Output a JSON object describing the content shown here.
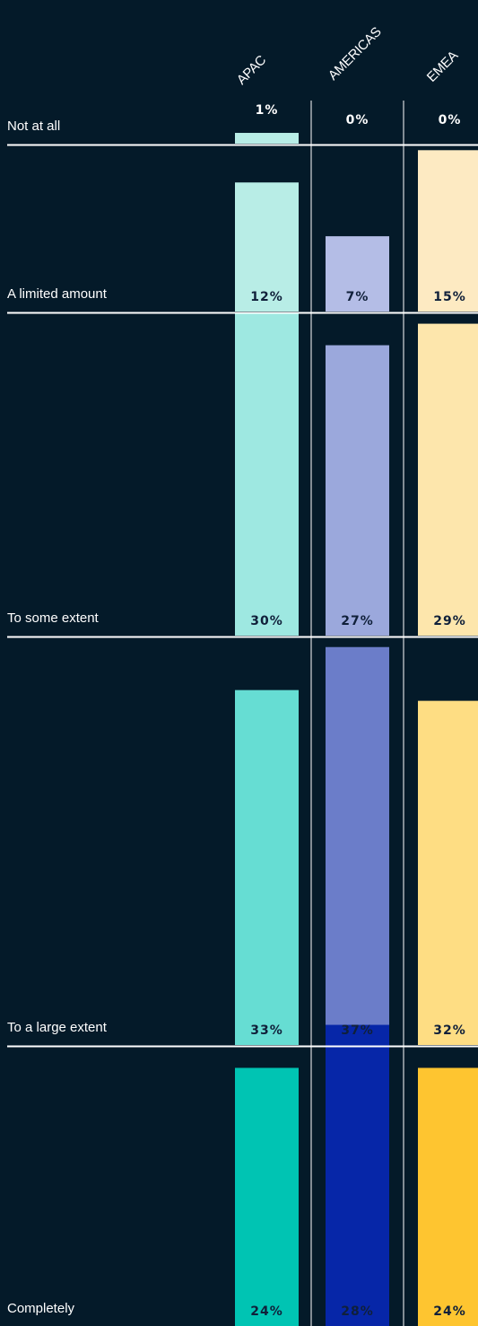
{
  "chart_data": {
    "type": "bar",
    "categories": [
      "Not at all",
      "A limited amount",
      "To some extent",
      "To a large extent",
      "Completely"
    ],
    "series": [
      {
        "name": "APAC",
        "values": [
          1,
          12,
          30,
          33,
          24
        ],
        "labels": [
          "1%",
          "12%",
          "30%",
          "33%",
          "24%"
        ],
        "colors": [
          "#b8ede6",
          "#b8ede6",
          "#9ee8e1",
          "#66ddd3",
          "#00c4b3"
        ]
      },
      {
        "name": "AMERICAS",
        "values": [
          0,
          7,
          27,
          37,
          28
        ],
        "labels": [
          "0%",
          "7%",
          "27%",
          "37%",
          "28%"
        ],
        "colors": [
          "#b4bde6",
          "#b4bde6",
          "#9ba8dc",
          "#6b7dc9",
          "#0626a8"
        ]
      },
      {
        "name": "EMEA",
        "values": [
          0,
          15,
          29,
          32,
          24
        ],
        "labels": [
          "0%",
          "15%",
          "29%",
          "32%",
          "24%"
        ],
        "colors": [
          "#fdeac2",
          "#fdeac2",
          "#fde6ac",
          "#fedd83",
          "#fec530"
        ]
      }
    ],
    "legend": "rotated labels above columns",
    "grid": false
  }
}
